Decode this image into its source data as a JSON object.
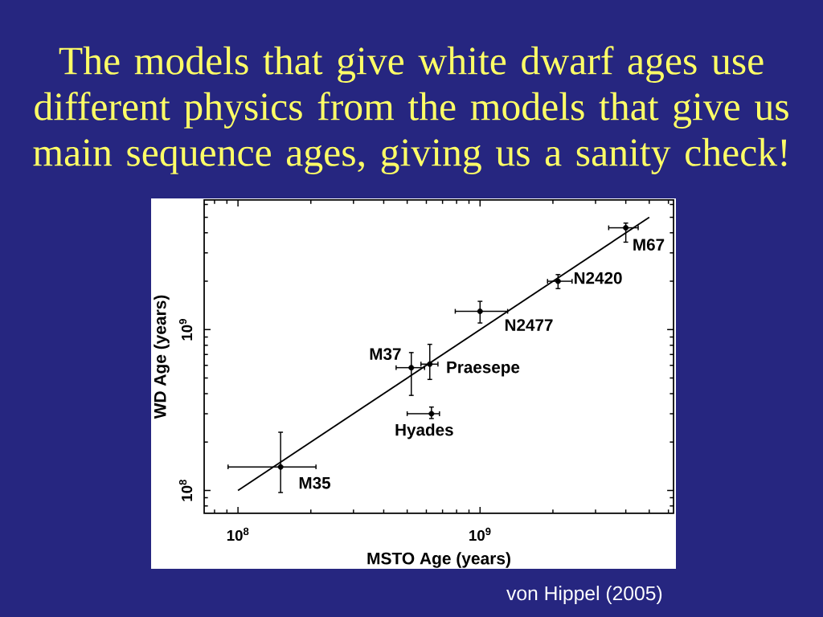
{
  "chart_data": {
    "type": "scatter",
    "title": "The models that give white dwarf ages use different physics from the models that give us main sequence ages, giving us a sanity check!",
    "xlabel": "MSTO Age (years)",
    "ylabel": "WD Age (years)",
    "log": "xy",
    "xlim": [
      72500000,
      6300000000
    ],
    "ylim": [
      72000000,
      6400000000
    ],
    "xticks": [
      {
        "value": 80000000,
        "label": null
      },
      {
        "value": 90000000,
        "label": null
      },
      {
        "value": 100000000,
        "label": "10$^{8}$"
      },
      {
        "value": 200000000,
        "label": null
      },
      {
        "value": 300000000,
        "label": null
      },
      {
        "value": 400000000,
        "label": null
      },
      {
        "value": 500000000,
        "label": null
      },
      {
        "value": 600000000,
        "label": null
      },
      {
        "value": 700000000,
        "label": null
      },
      {
        "value": 800000000,
        "label": null
      },
      {
        "value": 900000000,
        "label": null
      },
      {
        "value": 1000000000,
        "label": "10$^{9}$"
      },
      {
        "value": 2000000000,
        "label": null
      },
      {
        "value": 3000000000,
        "label": null
      },
      {
        "value": 4000000000,
        "label": null
      },
      {
        "value": 5000000000,
        "label": null
      },
      {
        "value": 6000000000,
        "label": null
      }
    ],
    "yticks": [
      {
        "value": 80000000,
        "label": null
      },
      {
        "value": 90000000,
        "label": null
      },
      {
        "value": 100000000,
        "label": "10$^{8}$"
      },
      {
        "value": 200000000,
        "label": null
      },
      {
        "value": 300000000,
        "label": null
      },
      {
        "value": 400000000,
        "label": null
      },
      {
        "value": 500000000,
        "label": null
      },
      {
        "value": 600000000,
        "label": null
      },
      {
        "value": 700000000,
        "label": null
      },
      {
        "value": 800000000,
        "label": null
      },
      {
        "value": 900000000,
        "label": null
      },
      {
        "value": 1000000000,
        "label": "10$^{9}$"
      },
      {
        "value": 2000000000,
        "label": null
      },
      {
        "value": 3000000000,
        "label": null
      },
      {
        "value": 4000000000,
        "label": null
      },
      {
        "value": 5000000000,
        "label": null
      },
      {
        "value": 6000000000,
        "label": null
      }
    ],
    "series": [
      {
        "color": "#000000",
        "marker": "circle",
        "x": [
          150000000,
          520000000,
          620000000,
          630000000,
          1000000000,
          2100000000,
          4000000000
        ],
        "values": [
          140000000,
          580000000,
          610000000,
          300000000,
          1300000000,
          2000000000,
          4300000000
        ],
        "xerrors": [
          [
            91000000,
            210000000
          ],
          [
            450000000,
            590000000
          ],
          [
            570000000,
            670000000
          ],
          [
            500000000,
            680000000
          ],
          [
            790000000,
            1300000000
          ],
          [
            1900000000,
            2400000000
          ],
          [
            3400000000,
            4500000000
          ]
        ],
        "errors": [
          [
            97000000,
            230000000
          ],
          [
            390000000,
            720000000
          ],
          [
            490000000,
            810000000
          ],
          [
            280000000,
            330000000
          ],
          [
            1100000000,
            1500000000
          ],
          [
            1800000000,
            2200000000
          ],
          [
            3500000000,
            4600000000
          ]
        ]
      },
      {
        "type": "line",
        "color": "#000000",
        "x": [
          100000000,
          5000000000
        ],
        "values": [
          100000000,
          5000000000
        ]
      }
    ],
    "annotations": [
      {
        "text": "M35",
        "x": 150000000,
        "y": 140000000
      },
      {
        "text": "M37",
        "x": 520000000,
        "y": 580000000
      },
      {
        "text": "Praesepe",
        "x": 620000000,
        "y": 610000000
      },
      {
        "text": "Hyades",
        "x": 630000000,
        "y": 300000000
      },
      {
        "text": "N2477",
        "x": 1000000000,
        "y": 1300000000
      },
      {
        "text": "N2420",
        "x": 2100000000,
        "y": 2000000000
      },
      {
        "text": "M67",
        "x": 4000000000,
        "y": 4300000000
      },
      "von Hippel (2005)"
    ]
  }
}
